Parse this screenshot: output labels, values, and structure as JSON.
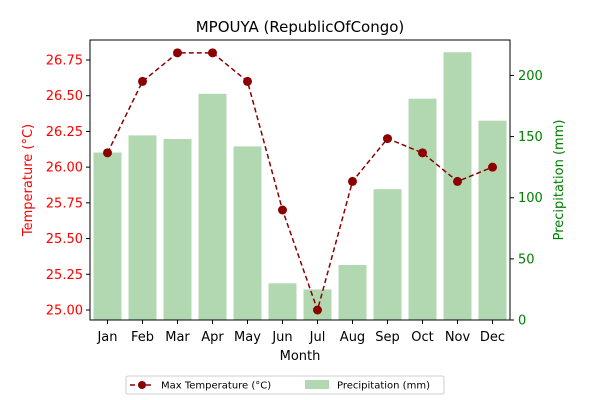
{
  "chart_data": {
    "type": "bar+line",
    "title": "MPOUYA (RepublicOfCongo)",
    "xlabel": "Month",
    "categories": [
      "Jan",
      "Feb",
      "Mar",
      "Apr",
      "May",
      "Jun",
      "Jul",
      "Aug",
      "Sep",
      "Oct",
      "Nov",
      "Dec"
    ],
    "left_axis": {
      "label": "Temperature (°C)",
      "color": "#ff0000",
      "ylim": [
        24.93,
        26.89
      ],
      "ticks": [
        "25.00",
        "25.25",
        "25.50",
        "25.75",
        "26.00",
        "26.25",
        "26.50",
        "26.75"
      ]
    },
    "right_axis": {
      "label": "Precipitation (mm)",
      "color": "#008000",
      "ylim": [
        0,
        229
      ],
      "ticks": [
        "0",
        "50",
        "100",
        "150",
        "200"
      ]
    },
    "series": [
      {
        "name": "Max Temperature (°C)",
        "type": "line",
        "axis": "left",
        "color": "#8b0000",
        "values": [
          26.1,
          26.6,
          26.8,
          26.8,
          26.6,
          25.7,
          25.0,
          25.9,
          26.2,
          26.1,
          25.9,
          26.0
        ]
      },
      {
        "name": "Precipitation (mm)",
        "type": "bar",
        "axis": "right",
        "color": "#b2d8b2",
        "values": [
          137,
          151,
          148,
          185,
          142,
          30,
          25,
          45,
          107,
          181,
          219,
          163
        ]
      }
    ],
    "legend_position": "bottom-center",
    "grid": false
  }
}
